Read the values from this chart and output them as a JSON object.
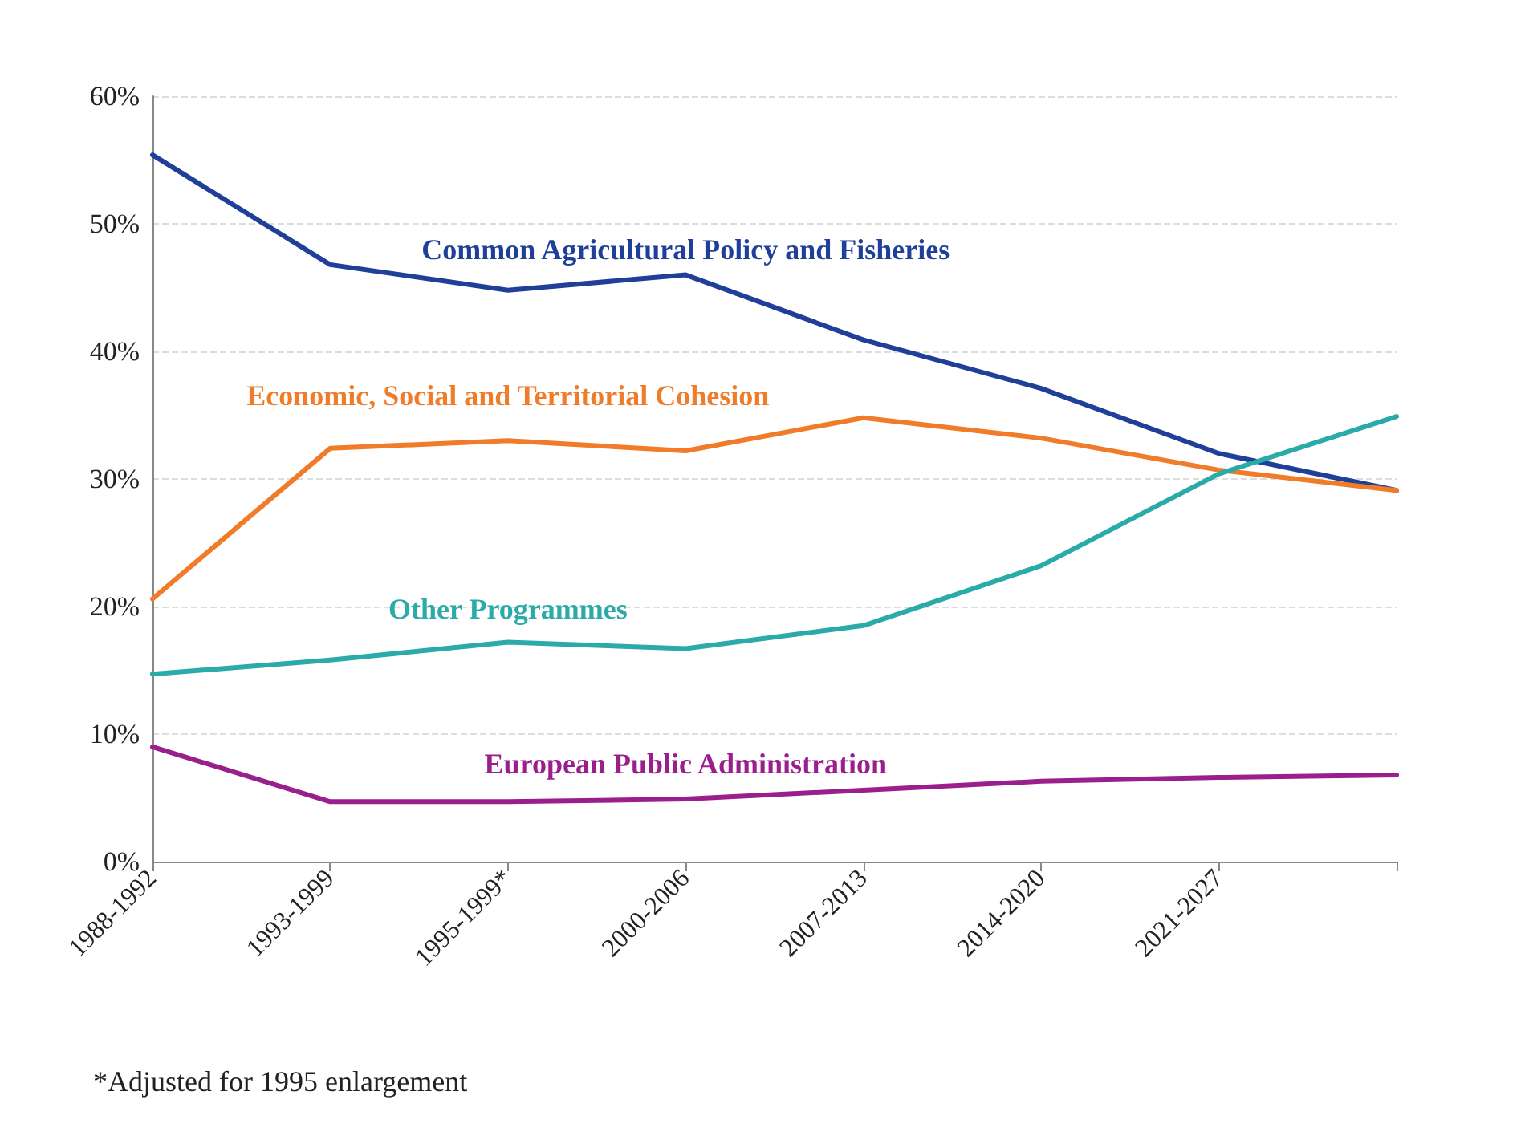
{
  "chart_data": {
    "type": "line",
    "categories": [
      "1988-1992",
      "1993-1999",
      "1995-1999*",
      "2000-2006",
      "2007-2013",
      "2014-2020",
      "2021-2027",
      null
    ],
    "ylim": [
      0,
      60
    ],
    "yticks": [
      {
        "value": 0,
        "label": "0%"
      },
      {
        "value": 10,
        "label": "10%"
      },
      {
        "value": 20,
        "label": "20%"
      },
      {
        "value": 30,
        "label": "30%"
      },
      {
        "value": 40,
        "label": "40%"
      },
      {
        "value": 50,
        "label": "50%"
      },
      {
        "value": 60,
        "label": "60%"
      }
    ],
    "series": [
      {
        "name": "Common Agricultural Policy and Fisheries",
        "color": "#1f3f99",
        "values": [
          55.4,
          46.8,
          44.8,
          46.0,
          40.9,
          37.1,
          32.0,
          29.1
        ]
      },
      {
        "name": "Economic, Social and Territorial Cohesion",
        "color": "#f07b28",
        "values": [
          20.6,
          32.4,
          33.0,
          32.2,
          34.8,
          33.2,
          30.7,
          29.1
        ]
      },
      {
        "name": "Other Programmes",
        "color": "#2aaaa8",
        "values": [
          14.7,
          15.8,
          17.2,
          16.7,
          18.5,
          23.2,
          30.4,
          34.9
        ]
      },
      {
        "name": "European Public Administration",
        "color": "#9a1e8c",
        "values": [
          9.0,
          4.7,
          4.7,
          4.9,
          5.6,
          6.3,
          6.6,
          6.8
        ]
      }
    ],
    "grid": "y",
    "legend": false,
    "marker": "none",
    "line_style": "solid",
    "annotations": [
      "*Adjusted for 1995 enlargement"
    ]
  }
}
